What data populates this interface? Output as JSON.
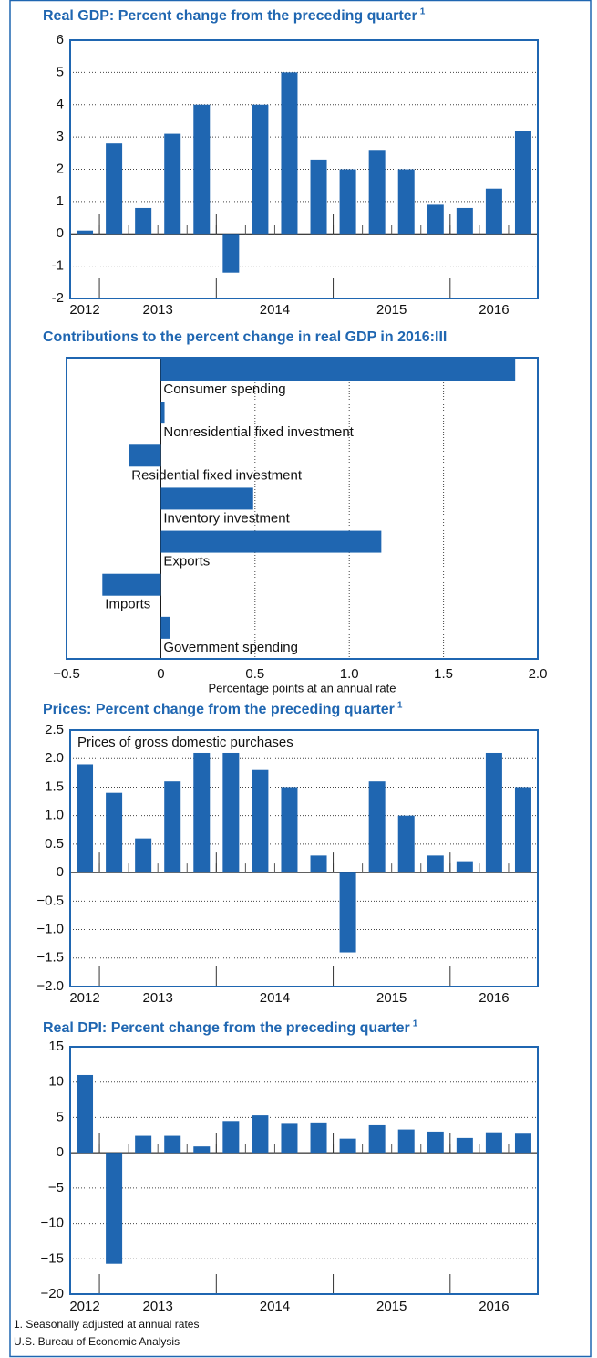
{
  "chart_data": [
    {
      "type": "bar",
      "title": "Real GDP: Percent change from the preceding quarter",
      "footnote_ref": "1",
      "categories": [
        "2012",
        "2013",
        null,
        null,
        null,
        "2014",
        null,
        null,
        null,
        "2015",
        null,
        null,
        null,
        "2016",
        null,
        null
      ],
      "values": [
        0.1,
        2.8,
        0.8,
        3.1,
        4.0,
        -1.2,
        4.0,
        5.0,
        2.3,
        2.0,
        2.6,
        2.0,
        0.9,
        0.8,
        1.4,
        3.2
      ],
      "color": "#1f66b1",
      "ylim": [
        -2,
        6
      ],
      "yticks": [
        -2,
        -1,
        0,
        1,
        2,
        3,
        4,
        5,
        6
      ],
      "grid": true
    },
    {
      "type": "barh",
      "title": "Contributions to the percent change in real GDP in 2016:III",
      "categories": [
        "Consumer spending",
        "Nonresidential fixed investment",
        "Residential fixed investment",
        "Inventory investment",
        "Exports",
        "Imports",
        "Government spending"
      ],
      "values": [
        1.88,
        0.02,
        -0.17,
        0.49,
        1.17,
        -0.31,
        0.05
      ],
      "color": "#1f66b1",
      "xlim": [
        -0.5,
        2.0
      ],
      "xticks": [
        {
          "value": -0.5,
          "label": "−0.5"
        },
        0,
        0.5,
        {
          "value": 1.0,
          "label": "1.0"
        },
        1.5,
        {
          "value": 2.0,
          "label": "2.0"
        }
      ],
      "xlabel": "Percentage points at an annual rate",
      "grid": true
    },
    {
      "type": "bar",
      "title": "Prices: Percent change from the preceding quarter",
      "footnote_ref": "1",
      "annotation": "Prices of gross domestic purchases",
      "categories": [
        "2012",
        "2013",
        null,
        null,
        null,
        "2014",
        null,
        null,
        null,
        "2015",
        null,
        null,
        null,
        "2016",
        null,
        null
      ],
      "values": [
        1.9,
        1.4,
        0.6,
        1.6,
        2.1,
        2.1,
        1.8,
        1.5,
        0.3,
        -1.4,
        1.6,
        1.0,
        0.3,
        0.2,
        2.1,
        1.5
      ],
      "color": "#1f66b1",
      "ylim": [
        -2.0,
        2.5
      ],
      "yticks": [
        {
          "value": -2.0,
          "label": "−2.0"
        },
        {
          "value": -1.5,
          "label": "−1.5"
        },
        {
          "value": -1.0,
          "label": "−1.0"
        },
        {
          "value": -0.5,
          "label": "−0.5"
        },
        0,
        0.5,
        {
          "value": 1.0,
          "label": "1.0"
        },
        1.5,
        {
          "value": 2.0,
          "label": "2.0"
        },
        2.5
      ],
      "grid": true
    },
    {
      "type": "bar",
      "title": "Real DPI: Percent change from the preceding quarter",
      "footnote_ref": "1",
      "categories": [
        "2012",
        "2013",
        null,
        null,
        null,
        "2014",
        null,
        null,
        null,
        "2015",
        null,
        null,
        null,
        "2016",
        null,
        null
      ],
      "values": [
        11.0,
        -15.7,
        2.4,
        2.4,
        0.9,
        4.5,
        5.3,
        4.1,
        4.3,
        2.0,
        3.9,
        3.3,
        3.0,
        2.1,
        2.9,
        2.7
      ],
      "color": "#1f66b1",
      "ylim": [
        -20,
        15
      ],
      "yticks": [
        {
          "value": -20,
          "label": "−20"
        },
        {
          "value": -15,
          "label": "−15"
        },
        {
          "value": -10,
          "label": "−10"
        },
        {
          "value": -5,
          "label": "−5"
        },
        0,
        5,
        10,
        15
      ],
      "grid": true
    }
  ],
  "footnotes": [
    "1. Seasonally adjusted at annual rates",
    "U.S. Bureau of Economic Analysis"
  ]
}
